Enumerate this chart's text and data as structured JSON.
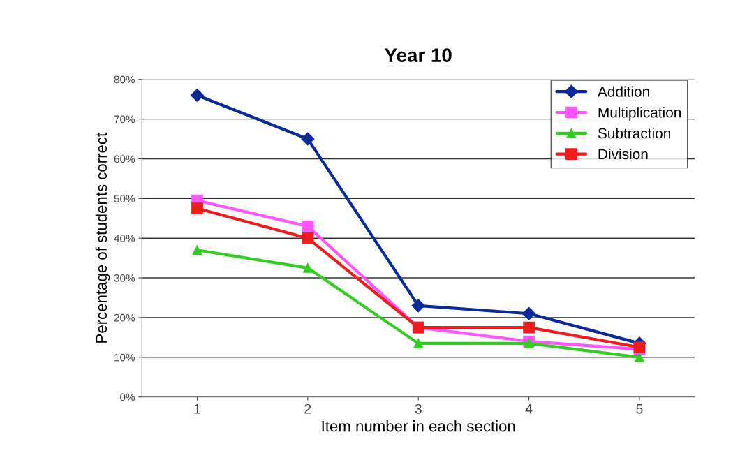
{
  "chart_data": {
    "type": "line",
    "title": "Year 10",
    "xlabel": "Item number in each section",
    "ylabel": "Percentage of students correct",
    "categories": [
      "1",
      "2",
      "3",
      "4",
      "5"
    ],
    "series": [
      {
        "name": "Addition",
        "color": "#0a2a9a",
        "marker": "diamond",
        "values": [
          76,
          65,
          23,
          21,
          13.5
        ]
      },
      {
        "name": "Multiplication",
        "color": "#ff55ff",
        "marker": "square",
        "values": [
          49.5,
          43,
          17.5,
          14,
          12
        ]
      },
      {
        "name": "Subtraction",
        "color": "#33cc22",
        "marker": "triangle",
        "values": [
          37,
          32.5,
          13.5,
          13.5,
          10
        ]
      },
      {
        "name": "Division",
        "color": "#ee1c1c",
        "marker": "square",
        "values": [
          47.5,
          40,
          17.5,
          17.5,
          12.5
        ]
      }
    ],
    "ylim": [
      0,
      80
    ],
    "yticks": [
      {
        "value": 0,
        "label": "0%"
      },
      {
        "value": 10,
        "label": "10%"
      },
      {
        "value": 20,
        "label": "20%"
      },
      {
        "value": 30,
        "label": "30%"
      },
      {
        "value": 40,
        "label": "40%"
      },
      {
        "value": 50,
        "label": "50%"
      },
      {
        "value": 60,
        "label": "60%"
      },
      {
        "value": 70,
        "label": "70%"
      },
      {
        "value": 80,
        "label": "80%"
      }
    ],
    "grid": "y",
    "legend": "top right",
    "line_style": "solid"
  }
}
